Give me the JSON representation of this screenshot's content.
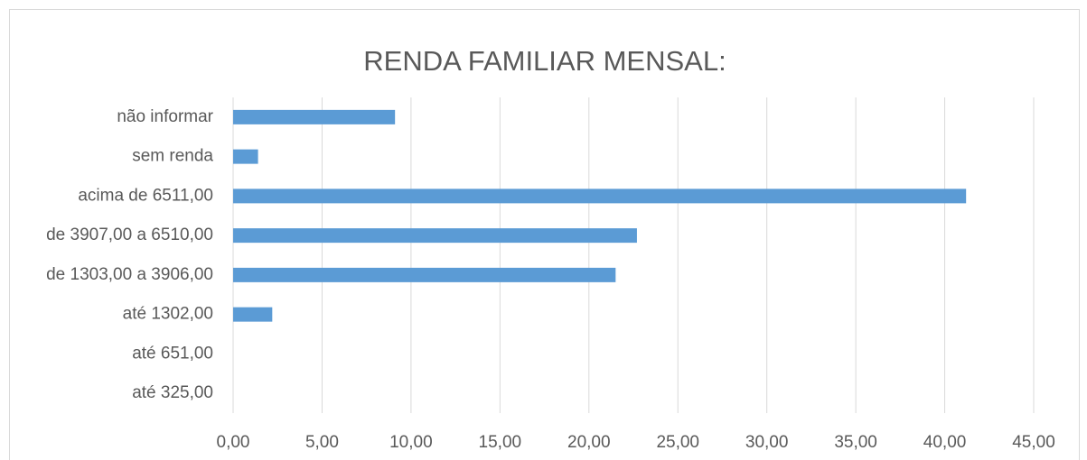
{
  "chart_data": {
    "type": "bar",
    "orientation": "horizontal",
    "title": "RENDA FAMILIAR MENSAL:",
    "categories": [
      "não informar",
      "sem renda",
      "acima de 6511,00",
      "de 3907,00 a 6510,00",
      "de 1303,00 a 3906,00",
      "até 1302,00",
      "até 651,00",
      "até 325,00"
    ],
    "values": [
      9.1,
      1.4,
      41.2,
      22.7,
      21.5,
      2.2,
      0,
      0
    ],
    "color": "#5b9bd5",
    "xlim": [
      0,
      45
    ],
    "xticks": [
      {
        "value": 0,
        "label": "0,00"
      },
      {
        "value": 5,
        "label": "5,00"
      },
      {
        "value": 10,
        "label": "10,00"
      },
      {
        "value": 15,
        "label": "15,00"
      },
      {
        "value": 20,
        "label": "20,00"
      },
      {
        "value": 25,
        "label": "25,00"
      },
      {
        "value": 30,
        "label": "30,00"
      },
      {
        "value": 35,
        "label": "35,00"
      },
      {
        "value": 40,
        "label": "40,00"
      },
      {
        "value": 45,
        "label": "45,00"
      }
    ],
    "grid": true
  }
}
